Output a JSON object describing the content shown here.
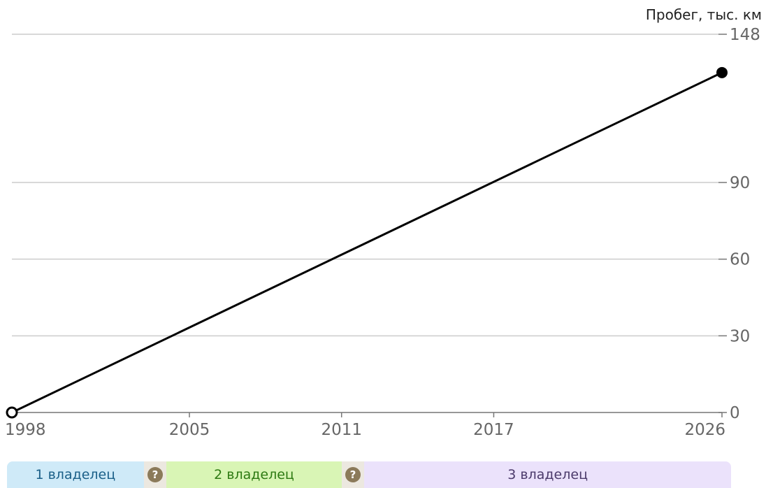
{
  "chart_data": {
    "type": "line",
    "unit_label": "Пробег, тыс. км",
    "x_ticks": [
      "1998",
      "2005",
      "2011",
      "2017",
      "2026"
    ],
    "y_ticks": [
      "0",
      "30",
      "60",
      "90",
      "148"
    ],
    "xlim": [
      1998,
      2026
    ],
    "ylim": [
      0,
      148
    ],
    "series": [
      {
        "points": [
          {
            "x": 1998,
            "y": 0,
            "marker": "hollow"
          },
          {
            "x": 2026,
            "y": 133,
            "marker": "filled"
          }
        ]
      }
    ],
    "grid": true
  },
  "owners": [
    {
      "label": "1 владелец",
      "from": 1998,
      "to": 2003.2,
      "bg": "#cfeaf8",
      "color": "#1a5f88"
    },
    {
      "gap": true,
      "from": 2003.2,
      "to": 2004.1,
      "bg": "#ece8e0",
      "icon": "question-icon",
      "icon_color": "#8b7a5a"
    },
    {
      "label": "2 владелец",
      "from": 2004.1,
      "to": 2011.0,
      "bg": "#d9f5b5",
      "color": "#2d7a12"
    },
    {
      "gap": true,
      "from": 2011.0,
      "to": 2011.9,
      "bg": "#ece8e0",
      "icon": "question-icon",
      "icon_color": "#8b7a5a"
    },
    {
      "label": "3 владелец",
      "from": 2011.9,
      "to": 2026,
      "bg": "#ebe2fb",
      "color": "#4b3a6b"
    }
  ]
}
